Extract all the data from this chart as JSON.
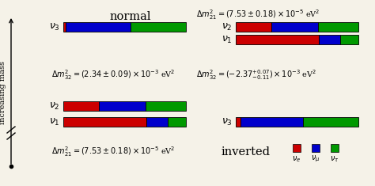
{
  "bg_color": "#f5f2e8",
  "colors": {
    "red": "#cc0000",
    "blue": "#0000cc",
    "green": "#009900"
  },
  "normal": {
    "nu3": [
      0.02,
      0.53,
      0.45
    ],
    "nu2": [
      0.29,
      0.38,
      0.33
    ],
    "nu1": [
      0.68,
      0.17,
      0.15
    ]
  },
  "inverted": {
    "nu2": [
      0.29,
      0.38,
      0.33
    ],
    "nu1": [
      0.68,
      0.17,
      0.15
    ],
    "nu3": [
      0.04,
      0.51,
      0.45
    ]
  },
  "title_normal": "normal",
  "title_inverted": "inverted",
  "label_dm32_normal": "$\\Delta m^2_{32} = (2.34 \\pm 0.09)\\times 10^{-3}$ eV$^2$",
  "label_dm21_bottom": "$\\Delta m^2_{21} = (7.53 \\pm 0.18)\\times 10^{-5}$ eV$^2$",
  "label_dm21_top_right": "$\\Delta m^2_{21} = (7.53 \\pm 0.18)\\times 10^{-5}$ eV$^2$",
  "label_dm32_inverted": "$\\Delta m^2_{32} = (-2.37^{+0.07}_{-0.11})\\times 10^{-3}$ eV$^2$",
  "increasing_mass": "increasing mass",
  "nu_labels": [
    "$\\nu_3$",
    "$\\nu_2$",
    "$\\nu_1$"
  ],
  "legend_labels": [
    "$\\nu_e$",
    "$\\nu_\\mu$",
    "$\\nu_\\tau$"
  ]
}
